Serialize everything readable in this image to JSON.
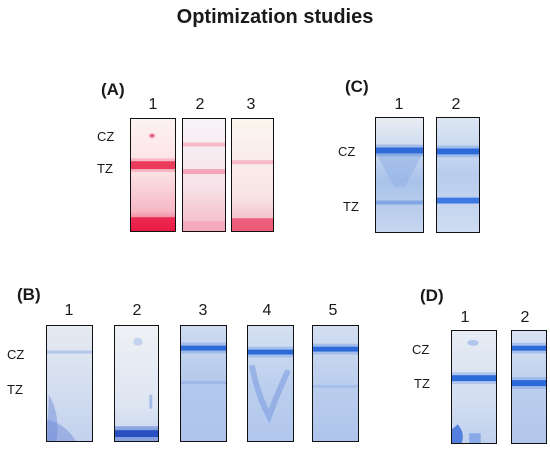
{
  "title": "Optimization studies",
  "panels": {
    "A": {
      "label": "(A)",
      "lanes": [
        "1",
        "2",
        "3"
      ],
      "zones": {
        "cz": "CZ",
        "tz": "TZ"
      }
    },
    "B": {
      "label": "(B)",
      "lanes": [
        "1",
        "2",
        "3",
        "4",
        "5"
      ],
      "zones": {
        "cz": "CZ",
        "tz": "TZ"
      }
    },
    "C": {
      "label": "(C)",
      "lanes": [
        "1",
        "2"
      ],
      "zones": {
        "cz": "CZ",
        "tz": "TZ"
      }
    },
    "D": {
      "label": "(D)",
      "lanes": [
        "1",
        "2"
      ],
      "zones": {
        "cz": "CZ",
        "tz": "TZ"
      }
    }
  },
  "colors": {
    "red_band": "#e8123e",
    "blue_band": "#1f5fd6",
    "strip_border": "#111111"
  }
}
